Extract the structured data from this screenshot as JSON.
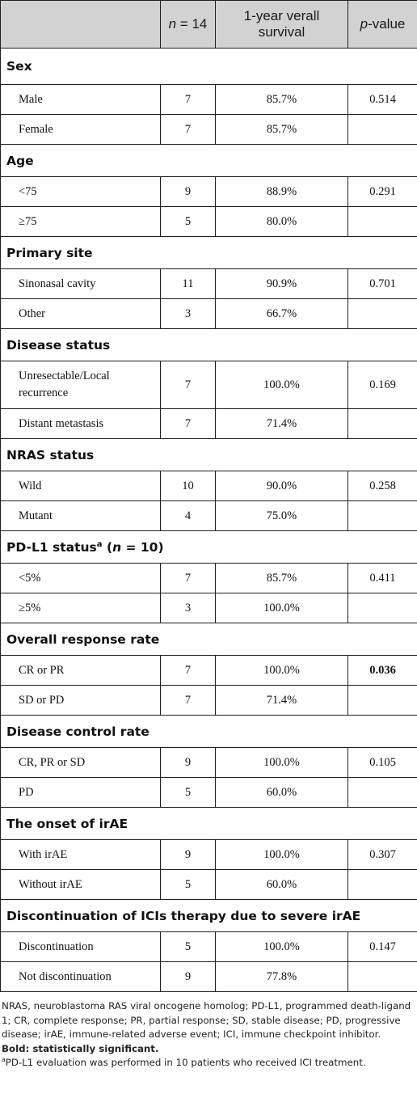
{
  "header": {
    "col1": "",
    "n_label": "n",
    "n_value": " = 14",
    "survival": "1-year verall survival",
    "p_label": "p",
    "p_suffix": "-value"
  },
  "sections": [
    {
      "title": "Sex",
      "rows": [
        {
          "label": "Male",
          "n": "7",
          "survival": "85.7%",
          "p": "0.514"
        },
        {
          "label": "Female",
          "n": "7",
          "survival": "85.7%",
          "p": ""
        }
      ]
    },
    {
      "title": "Age",
      "rows": [
        {
          "label": "<75",
          "n": "9",
          "survival": "88.9%",
          "p": "0.291"
        },
        {
          "label": "≥75",
          "n": "5",
          "survival": "80.0%",
          "p": ""
        }
      ]
    },
    {
      "title": "Primary site",
      "rows": [
        {
          "label": "Sinonasal cavity",
          "n": "11",
          "survival": "90.9%",
          "p": "0.701"
        },
        {
          "label": "Other",
          "n": "3",
          "survival": "66.7%",
          "p": ""
        }
      ]
    },
    {
      "title": "Disease status",
      "rows": [
        {
          "label": "Unresectable/Local recurrence",
          "n": "7",
          "survival": "100.0%",
          "p": "0.169"
        },
        {
          "label": "Distant metastasis",
          "n": "7",
          "survival": "71.4%",
          "p": ""
        }
      ]
    },
    {
      "title": "NRAS status",
      "rows": [
        {
          "label": "Wild",
          "n": "10",
          "survival": "90.0%",
          "p": "0.258"
        },
        {
          "label": "Mutant",
          "n": "4",
          "survival": "75.0%",
          "p": ""
        }
      ]
    },
    {
      "title": "PD-L1 status",
      "title_sup": "a",
      "title_n_open": " (",
      "title_n": "n",
      "title_n_close": " = 10)",
      "rows": [
        {
          "label": "<5%",
          "n": "7",
          "survival": "85.7%",
          "p": "0.411"
        },
        {
          "label": "≥5%",
          "n": "3",
          "survival": "100.0%",
          "p": ""
        }
      ]
    },
    {
      "title": "Overall response rate",
      "rows": [
        {
          "label": "CR or PR",
          "n": "7",
          "survival": "100.0%",
          "p": "0.036",
          "p_bold": true
        },
        {
          "label": "SD or PD",
          "n": "7",
          "survival": "71.4%",
          "p": ""
        }
      ]
    },
    {
      "title": "Disease control rate",
      "rows": [
        {
          "label": "CR, PR or SD",
          "n": "9",
          "survival": "100.0%",
          "p": "0.105"
        },
        {
          "label": "PD",
          "n": "5",
          "survival": "60.0%",
          "p": ""
        }
      ]
    },
    {
      "title": "The onset of irAE",
      "rows": [
        {
          "label": "With irAE",
          "n": "9",
          "survival": "100.0%",
          "p": "0.307"
        },
        {
          "label": "Without irAE",
          "n": "5",
          "survival": "60.0%",
          "p": ""
        }
      ]
    },
    {
      "title": "Discontinuation of ICIs therapy due to severe irAE",
      "rows": [
        {
          "label": "Discontinuation",
          "n": "5",
          "survival": "100.0%",
          "p": "0.147"
        },
        {
          "label": "Not discontinuation",
          "n": "9",
          "survival": "77.8%",
          "p": ""
        }
      ]
    }
  ],
  "footnotes": {
    "abbreviations": "NRAS, neuroblastoma RAS viral oncogene homolog; PD-L1, programmed death-ligand 1; CR, complete response; PR, partial response; SD, stable disease; PD, progressive disease; irAE, immune-related adverse event; ICI, immune checkpoint inhibitor.",
    "bold_note": "Bold: statistically significant.",
    "pdl1_marker": "a",
    "pdl1_note": "PD-L1 evaluation was performed in 10 patients who received ICI treatment."
  }
}
